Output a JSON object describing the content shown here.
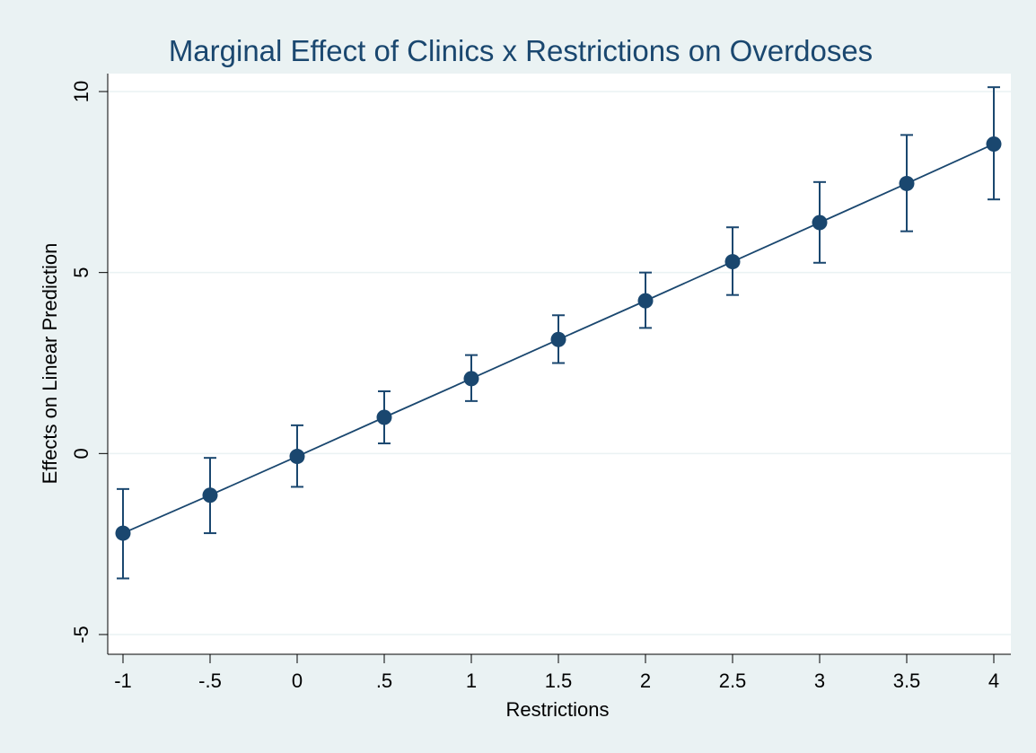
{
  "chart_data": {
    "type": "line",
    "title": "Marginal Effect of Clinics x Restrictions on Overdoses",
    "xlabel": "Restrictions",
    "ylabel": "Effects on Linear Prediction",
    "x": [
      -1,
      -0.5,
      0,
      0.5,
      1,
      1.5,
      2,
      2.5,
      3,
      3.5,
      4
    ],
    "x_tick_labels": [
      "-1",
      "-.5",
      "0",
      ".5",
      "1",
      "1.5",
      "2",
      "2.5",
      "3",
      "3.5",
      "4"
    ],
    "y_ticks": [
      -5,
      0,
      5,
      10
    ],
    "y_tick_labels": [
      "-5",
      "0",
      "5",
      "10"
    ],
    "xlim": [
      -1,
      4
    ],
    "ylim": [
      -5.3,
      10.4
    ],
    "grid": true,
    "series": [
      {
        "values": [
          -2.2,
          -1.15,
          -0.08,
          1.0,
          2.07,
          3.15,
          4.22,
          5.3,
          6.38,
          7.46,
          8.55
        ],
        "ci_lower": [
          -3.45,
          -2.2,
          -0.92,
          0.28,
          1.45,
          2.5,
          3.47,
          4.38,
          5.27,
          6.14,
          7.02
        ],
        "ci_upper": [
          -0.98,
          -0.12,
          0.78,
          1.72,
          2.72,
          3.82,
          5.0,
          6.25,
          7.5,
          8.8,
          10.12
        ]
      }
    ],
    "colors": {
      "background": "#eaf2f3",
      "plot_area": "#ffffff",
      "series": "#1a476f",
      "title": "#1a476f",
      "grid": "#eaf2f3"
    }
  }
}
